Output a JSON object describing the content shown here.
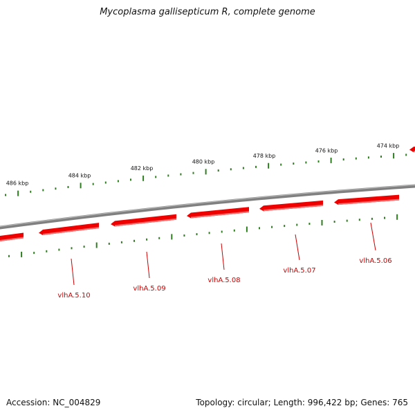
{
  "title": "Mycoplasma gallisepticum R, complete genome",
  "footer": {
    "accession": "Accession: NC_004829",
    "summary": "Topology: circular; Length: 996,422 bp; Genes: 765"
  },
  "colors": {
    "backbone": "#808080",
    "gene_fill": "#ee0000",
    "gene_shade": "#ff7070",
    "gene_label": "#cc0000",
    "tick": "#2e7d1f",
    "text": "#111111"
  },
  "scale_labels": [
    "486 kbp",
    "484 kbp",
    "482 kbp",
    "480 kbp",
    "478 kbp",
    "476 kbp",
    "474 kbp"
  ],
  "genes": [
    {
      "name": "vlhA.5.10",
      "strand": "reverse"
    },
    {
      "name": "vlhA.5.09",
      "strand": "reverse"
    },
    {
      "name": "vlhA.5.08",
      "strand": "reverse"
    },
    {
      "name": "vlhA.5.07",
      "strand": "reverse"
    },
    {
      "name": "vlhA.5.06",
      "strand": "reverse"
    }
  ]
}
